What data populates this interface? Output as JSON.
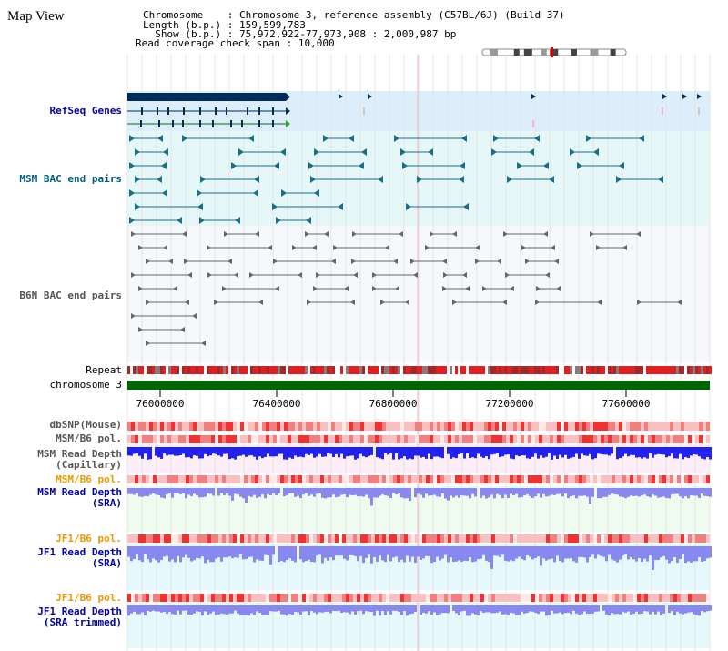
{
  "view_title": "Map View",
  "header": {
    "chromosome_key": "Chromosome",
    "chromosome_value": "Chromosome 3, reference assembly (C57BL/6J) (Build 37)",
    "length_key": "Length (b.p.)",
    "length_value": "159,599,783",
    "show_key": "Show (b.p.)",
    "show_value": "75,972,922-77,973,908 : 2,000,987 bp",
    "coverage_key": "Read coverage check span",
    "coverage_value": "10,000"
  },
  "tracks": {
    "refseq": "RefSeq Genes",
    "msm_bac": "MSM BAC end pairs",
    "b6n_bac": "B6N BAC end pairs",
    "repeat": "Repeat",
    "chromosome": "chromosome 3",
    "dbsnp": "dbSNP(Mouse)",
    "msm_b6_pol_1": "MSM/B6 pol.",
    "msm_read_depth_cap_1": "MSM Read Depth",
    "msm_read_depth_cap_2": "(Capillary)",
    "msm_b6_pol_2": "MSM/B6 pol.",
    "msm_read_depth_sra_1": "MSM Read Depth",
    "msm_read_depth_sra_2": "(SRA)",
    "jf1_b6_pol_1": "JF1/B6 pol.",
    "jf1_read_depth_sra_1": "JF1 Read Depth",
    "jf1_read_depth_sra_2": "(SRA)",
    "jf1_b6_pol_2": "JF1/B6 pol.",
    "jf1_read_depth_trim_1": "JF1 Read Depth",
    "jf1_read_depth_trim_2": "(SRA trimmed)"
  },
  "axis_ticks": [
    "76000000",
    "76400000",
    "76800000",
    "77200000",
    "77600000"
  ],
  "colors": {
    "refseq_bg": "#dbeef9",
    "msm_bg": "#e6f7f7",
    "b6n_bg": "#f6f8fb",
    "chromosome_bar": "#006400",
    "gene_dark": "#002b5c",
    "msm_feature": "#1a6e8c",
    "b6n_feature": "#666666",
    "depth_capillary": "#2222ee",
    "depth_sra": "#8888f0",
    "snp_red": "#ee3333",
    "lane_pink": "#fdeef8",
    "lane_mint": "#eefbee",
    "lane_sky": "#e5f8fb"
  }
}
